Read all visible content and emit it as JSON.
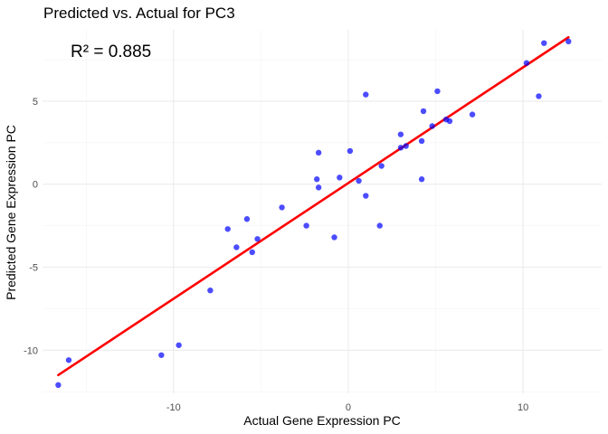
{
  "chart_data": {
    "type": "scatter",
    "title": "Predicted vs. Actual for PC3",
    "xlabel": "Actual Gene Expression PC",
    "ylabel": "Predicted Gene Expression PC",
    "annotation": "R² = 0.885",
    "xlim": [
      -17.5,
      14.5
    ],
    "ylim": [
      -12.6,
      9.3
    ],
    "x_ticks": [
      -10,
      0,
      10
    ],
    "x_tick_labels": [
      "-10",
      "0",
      "10"
    ],
    "y_ticks": [
      -10,
      -5,
      0,
      5
    ],
    "y_tick_labels": [
      "-10",
      "-5",
      "0",
      "5"
    ],
    "grid": true,
    "legend": "none",
    "point_color": "#0000ff",
    "line_color": "#ff0000",
    "points": [
      {
        "x": -16.6,
        "y": -12.1
      },
      {
        "x": -16.0,
        "y": -10.6
      },
      {
        "x": -10.7,
        "y": -10.3
      },
      {
        "x": -9.7,
        "y": -9.7
      },
      {
        "x": -7.9,
        "y": -6.4
      },
      {
        "x": -6.9,
        "y": -2.7
      },
      {
        "x": -6.4,
        "y": -3.8
      },
      {
        "x": -5.8,
        "y": -2.1
      },
      {
        "x": -5.5,
        "y": -4.1
      },
      {
        "x": -5.2,
        "y": -3.3
      },
      {
        "x": -3.8,
        "y": -1.4
      },
      {
        "x": -2.4,
        "y": -2.5
      },
      {
        "x": -1.8,
        "y": 0.3
      },
      {
        "x": -1.7,
        "y": -0.2
      },
      {
        "x": -1.7,
        "y": 1.9
      },
      {
        "x": -0.8,
        "y": -3.2
      },
      {
        "x": -0.5,
        "y": 0.4
      },
      {
        "x": 0.1,
        "y": 2.0
      },
      {
        "x": 0.6,
        "y": 0.2
      },
      {
        "x": 1.0,
        "y": 5.4
      },
      {
        "x": 1.0,
        "y": -0.7
      },
      {
        "x": 1.8,
        "y": -2.5
      },
      {
        "x": 1.9,
        "y": 1.1
      },
      {
        "x": 3.0,
        "y": 2.2
      },
      {
        "x": 3.0,
        "y": 3.0
      },
      {
        "x": 3.3,
        "y": 2.3
      },
      {
        "x": 4.2,
        "y": 0.3
      },
      {
        "x": 4.2,
        "y": 2.6
      },
      {
        "x": 4.3,
        "y": 4.4
      },
      {
        "x": 4.8,
        "y": 3.5
      },
      {
        "x": 5.1,
        "y": 5.6
      },
      {
        "x": 5.6,
        "y": 3.9
      },
      {
        "x": 5.8,
        "y": 3.8
      },
      {
        "x": 7.1,
        "y": 4.2
      },
      {
        "x": 10.2,
        "y": 7.3
      },
      {
        "x": 10.9,
        "y": 5.3
      },
      {
        "x": 11.2,
        "y": 8.5
      },
      {
        "x": 12.6,
        "y": 8.6
      }
    ],
    "fit_line": {
      "x": [
        -16.6,
        12.6
      ],
      "y": [
        -11.5,
        8.85
      ]
    }
  }
}
